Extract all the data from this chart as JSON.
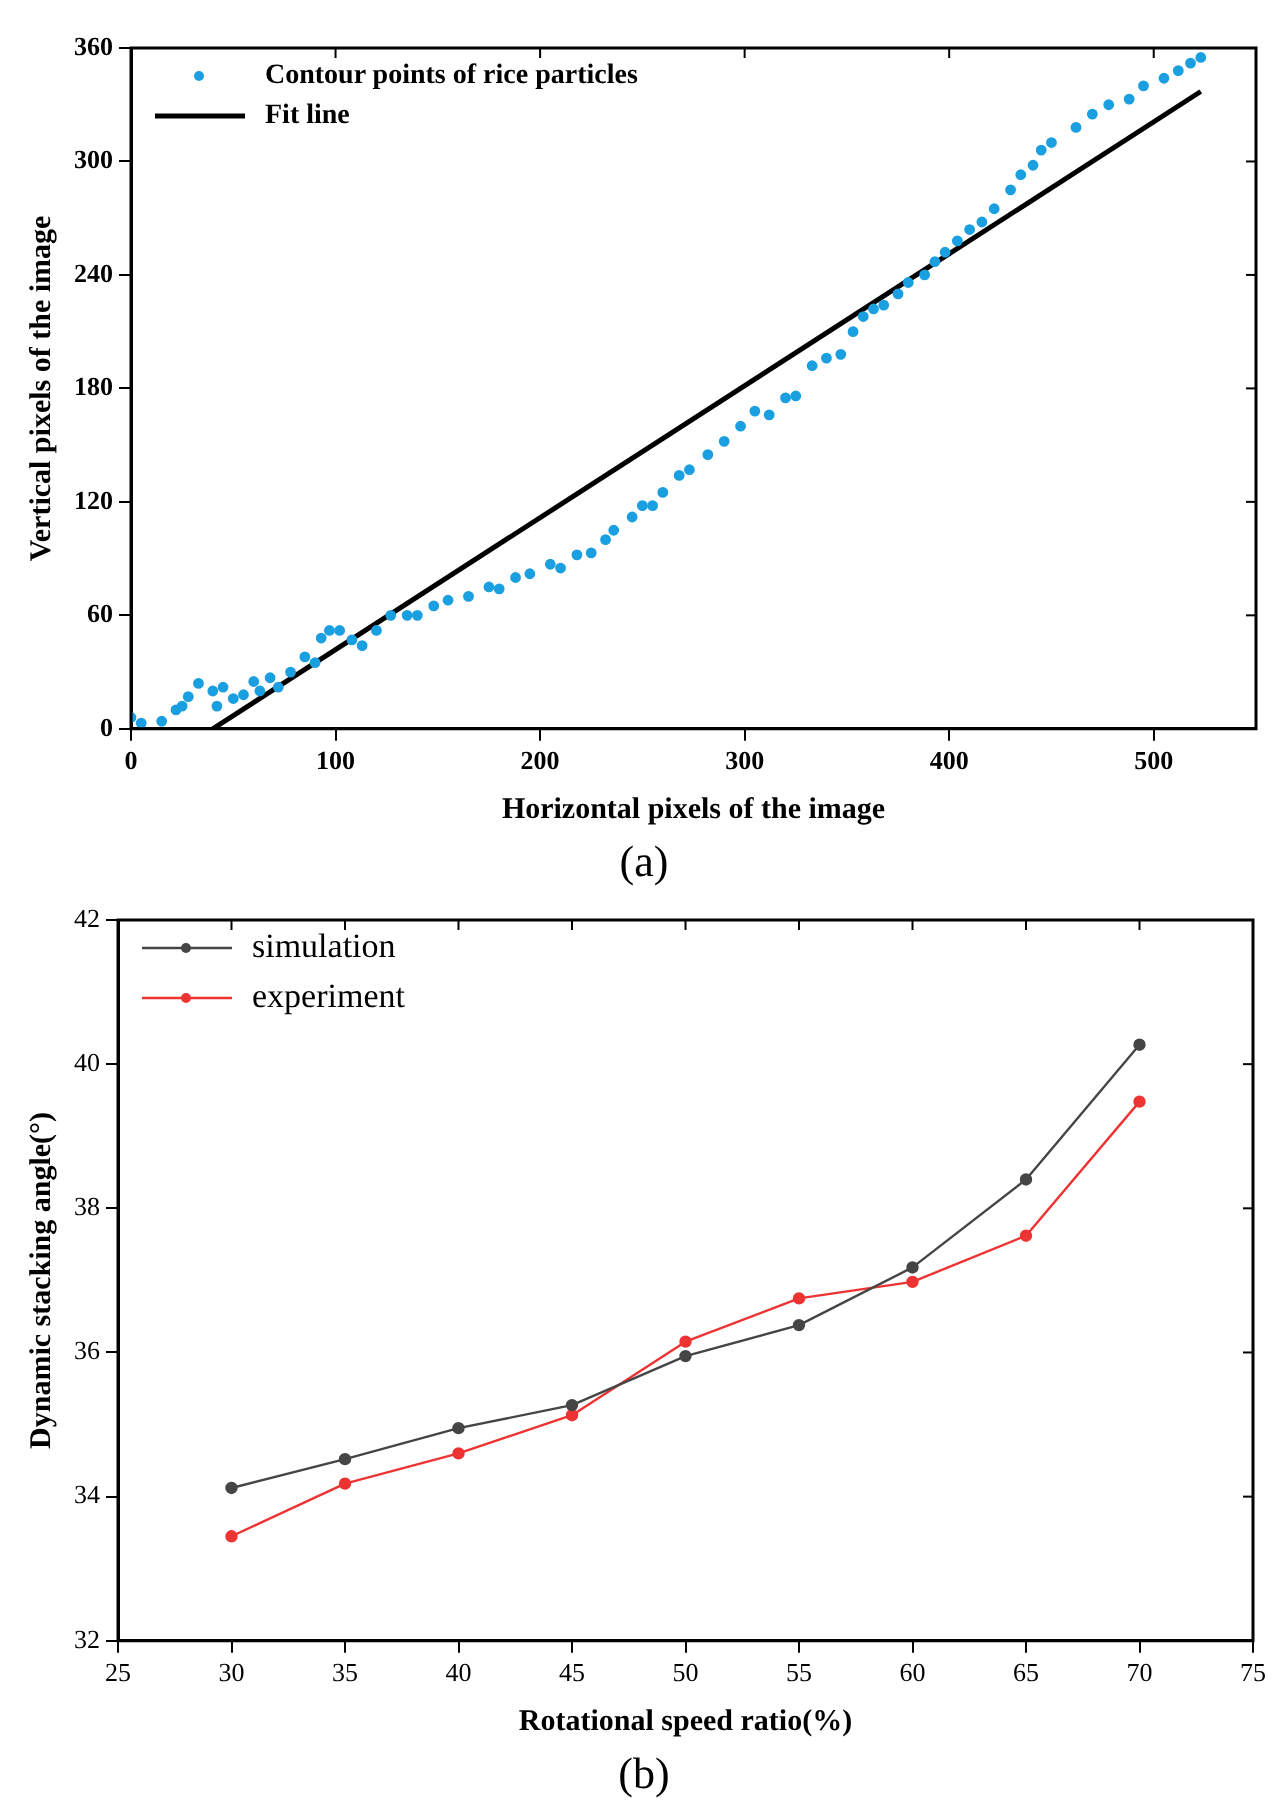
{
  "chart_data": [
    {
      "type": "scatter",
      "xlabel": "Horizontal pixels of the image",
      "ylabel": "Vertical pixels of the image",
      "annotations": [
        "(a)"
      ],
      "xlim": [
        0,
        550
      ],
      "xticks": [
        0,
        100,
        200,
        300,
        400,
        500
      ],
      "ylim": [
        0,
        360
      ],
      "yticks": [
        0,
        60,
        120,
        180,
        240,
        300,
        360
      ],
      "legend": "top left",
      "grid": false,
      "series": [
        {
          "name": "Contour points of rice particles",
          "marker": "circle",
          "color": "#1a9fe0",
          "x": [
            0,
            5,
            15,
            22,
            25,
            28,
            33,
            40,
            45,
            42,
            50,
            55,
            60,
            63,
            68,
            72,
            78,
            85,
            90,
            93,
            97,
            102,
            108,
            113,
            120,
            127,
            135,
            140,
            148,
            155,
            165,
            175,
            180,
            188,
            195,
            205,
            210,
            218,
            225,
            232,
            236,
            245,
            250,
            255,
            260,
            268,
            273,
            282,
            290,
            298,
            305,
            312,
            320,
            325,
            333,
            340,
            347,
            353,
            358,
            363,
            368,
            375,
            380,
            388,
            393,
            398,
            404,
            410,
            416,
            422,
            430,
            435,
            441,
            445,
            450,
            462,
            470,
            478,
            488,
            495,
            505,
            512,
            518,
            523
          ],
          "values": [
            6,
            3,
            4,
            10,
            12,
            17,
            24,
            20,
            22,
            12,
            16,
            18,
            25,
            20,
            27,
            22,
            30,
            38,
            35,
            48,
            52,
            52,
            47,
            44,
            52,
            60,
            60,
            60,
            65,
            68,
            70,
            75,
            74,
            80,
            82,
            87,
            85,
            92,
            93,
            100,
            105,
            112,
            118,
            118,
            125,
            134,
            137,
            145,
            152,
            160,
            168,
            166,
            175,
            176,
            192,
            196,
            198,
            210,
            218,
            222,
            224,
            230,
            236,
            240,
            247,
            252,
            258,
            264,
            268,
            275,
            285,
            293,
            298,
            306,
            310,
            318,
            325,
            330,
            333,
            340,
            344,
            348,
            352,
            355
          ]
        },
        {
          "name": "Fit line",
          "type": "line",
          "marker": "none",
          "color": "#000000",
          "x": [
            40,
            523
          ],
          "values": [
            0,
            337
          ]
        }
      ]
    },
    {
      "type": "line",
      "xlabel": "Rotational speed ratio(%)",
      "ylabel": "Dynamic stacking angle(°)",
      "annotations": [
        "(b)"
      ],
      "x": [
        30,
        35,
        40,
        45,
        50,
        55,
        60,
        65,
        70
      ],
      "xlim": [
        25,
        75
      ],
      "xticks": [
        25,
        30,
        35,
        40,
        45,
        50,
        55,
        60,
        65,
        70,
        75
      ],
      "ylim": [
        32,
        42
      ],
      "yticks": [
        32,
        34,
        36,
        38,
        40,
        42
      ],
      "legend": "top left",
      "grid": false,
      "marker": "circle",
      "series": [
        {
          "name": "simulation",
          "color": "#454545",
          "values": [
            34.12,
            34.52,
            34.95,
            35.27,
            35.95,
            36.38,
            37.18,
            38.4,
            40.27
          ]
        },
        {
          "name": "experiment",
          "color": "#ee3333",
          "values": [
            33.45,
            34.18,
            34.6,
            35.13,
            36.15,
            36.75,
            36.98,
            37.62,
            39.48
          ]
        }
      ]
    }
  ]
}
